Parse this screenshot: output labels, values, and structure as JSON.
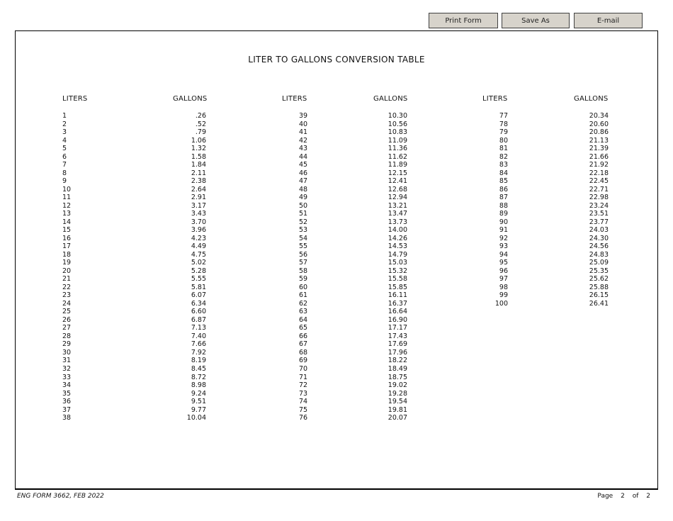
{
  "toolbar": {
    "print_label": "Print Form",
    "save_label": "Save As",
    "email_label": "E-mail"
  },
  "form": {
    "title": "LITER TO GALLONS CONVERSION TABLE",
    "liters_header": "LITERS",
    "gallons_header": "GALLONS"
  },
  "table": {
    "liters": [
      [
        "1",
        "2",
        "3",
        "4",
        "5",
        "6",
        "7",
        "8",
        "9",
        "10",
        "11",
        "12",
        "13",
        "14",
        "15",
        "16",
        "17",
        "18",
        "19",
        "20",
        "21",
        "22",
        "23",
        "24",
        "25",
        "26",
        "27",
        "28",
        "29",
        "30",
        "31",
        "32",
        "33",
        "34",
        "35",
        "36",
        "37",
        "38"
      ],
      [
        "39",
        "40",
        "41",
        "42",
        "43",
        "44",
        "45",
        "46",
        "47",
        "48",
        "49",
        "50",
        "51",
        "52",
        "53",
        "54",
        "55",
        "56",
        "57",
        "58",
        "59",
        "60",
        "61",
        "62",
        "63",
        "64",
        "65",
        "66",
        "67",
        "68",
        "69",
        "70",
        "71",
        "72",
        "73",
        "74",
        "75",
        "76"
      ],
      [
        "77",
        "78",
        "79",
        "80",
        "81",
        "82",
        "83",
        "84",
        "85",
        "86",
        "87",
        "88",
        "89",
        "90",
        "91",
        "92",
        "93",
        "94",
        "95",
        "96",
        "97",
        "98",
        "99",
        "100"
      ]
    ],
    "gallons": [
      [
        ".26",
        ".52",
        ".79",
        "1.06",
        "1.32",
        "1.58",
        "1.84",
        "2.11",
        "2.38",
        "2.64",
        "2.91",
        "3.17",
        "3.43",
        "3.70",
        "3.96",
        "4.23",
        "4.49",
        "4.75",
        "5.02",
        "5.28",
        "5.55",
        "5.81",
        "6.07",
        "6.34",
        "6.60",
        "6.87",
        "7.13",
        "7.40",
        "7.66",
        "7.92",
        "8.19",
        "8.45",
        "8.72",
        "8.98",
        "9.24",
        "9.51",
        "9.77",
        "10.04"
      ],
      [
        "10.30",
        "10.56",
        "10.83",
        "11.09",
        "11.36",
        "11.62",
        "11.89",
        "12.15",
        "12.41",
        "12.68",
        "12.94",
        "13.21",
        "13.47",
        "13.73",
        "14.00",
        "14.26",
        "14.53",
        "14.79",
        "15.03",
        "15.32",
        "15.58",
        "15.85",
        "16.11",
        "16.37",
        "16.64",
        "16.90",
        "17.17",
        "17.43",
        "17.69",
        "17.96",
        "18.22",
        "18.49",
        "18.75",
        "19.02",
        "19.28",
        "19.54",
        "19.81",
        "20.07"
      ],
      [
        "20.34",
        "20.60",
        "20.86",
        "21.13",
        "21.39",
        "21.66",
        "21.92",
        "22.18",
        "22.45",
        "22.71",
        "22.98",
        "23.24",
        "23.51",
        "23.77",
        "24.03",
        "24.30",
        "24.56",
        "24.83",
        "25.09",
        "25.35",
        "25.62",
        "25.88",
        "26.15",
        "26.41"
      ]
    ]
  },
  "footer": {
    "form_id": "ENG FORM 3662, FEB 2022",
    "page_label": "Page",
    "page_current": "2",
    "of_label": "of",
    "page_total": "2"
  }
}
